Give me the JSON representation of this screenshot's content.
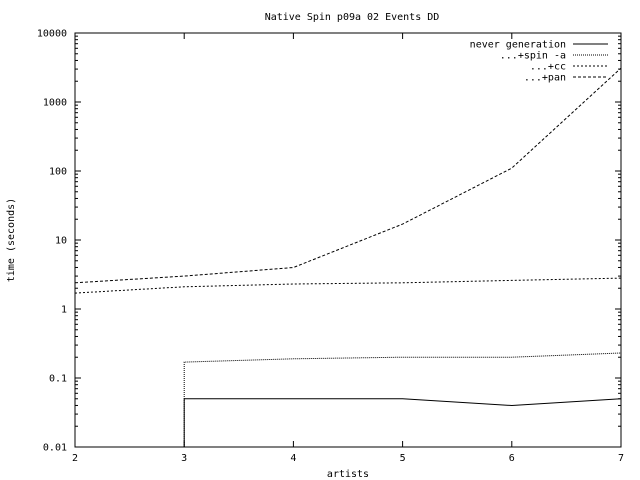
{
  "chart_data": {
    "type": "line",
    "title": "Native Spin p09a 02 Events DD",
    "xlabel": "artists",
    "ylabel": "time (seconds)",
    "xlim": [
      2,
      7
    ],
    "ylim": [
      0.01,
      10000
    ],
    "y_scale": "log",
    "grid": false,
    "legend_position": "top-right",
    "x_ticks": [
      {
        "value": 2,
        "label": "2"
      },
      {
        "value": 3,
        "label": "3"
      },
      {
        "value": 4,
        "label": "4"
      },
      {
        "value": 5,
        "label": "5"
      },
      {
        "value": 6,
        "label": "6"
      },
      {
        "value": 7,
        "label": "7"
      }
    ],
    "y_ticks": [
      {
        "value": 0.01,
        "label": "0.01"
      },
      {
        "value": 0.1,
        "label": "0.1"
      },
      {
        "value": 1,
        "label": "1"
      },
      {
        "value": 10,
        "label": "10"
      },
      {
        "value": 100,
        "label": "100"
      },
      {
        "value": 1000,
        "label": "1000"
      },
      {
        "value": 10000,
        "label": "10000"
      }
    ],
    "series": [
      {
        "name": "never generation",
        "dash": "",
        "points": [
          [
            3,
            0.01
          ],
          [
            3,
            0.05
          ],
          [
            4,
            0.05
          ],
          [
            5,
            0.05
          ],
          [
            6,
            0.04
          ],
          [
            7,
            0.05
          ]
        ]
      },
      {
        "name": "...+spin -a",
        "dash": "1,1",
        "points": [
          [
            3,
            0.01
          ],
          [
            3,
            0.17
          ],
          [
            4,
            0.19
          ],
          [
            5,
            0.2
          ],
          [
            6,
            0.2
          ],
          [
            7,
            0.23
          ]
        ]
      },
      {
        "name": "...+cc",
        "dash": "2,2",
        "points": [
          [
            2,
            1.7
          ],
          [
            3,
            2.1
          ],
          [
            4,
            2.3
          ],
          [
            5,
            2.4
          ],
          [
            6,
            2.6
          ],
          [
            7,
            2.8
          ]
        ]
      },
      {
        "name": "...+pan",
        "dash": "3,2",
        "points": [
          [
            2,
            2.4
          ],
          [
            3,
            3.0
          ],
          [
            4,
            4.0
          ],
          [
            5,
            17
          ],
          [
            6,
            110
          ],
          [
            7,
            3100
          ]
        ]
      }
    ]
  }
}
